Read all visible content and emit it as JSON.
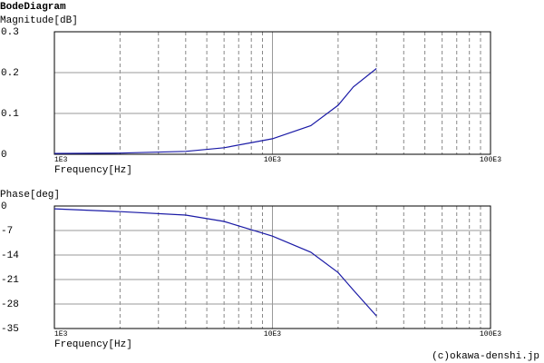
{
  "title": "BodeDiagram",
  "credit": "(c)okawa-denshi.jp",
  "chart_data": [
    {
      "type": "line",
      "ylabel": "Magnitude[dB]",
      "xlabel": "Frequency[Hz]",
      "xscale": "log",
      "grid": true,
      "x": [
        1000,
        2000,
        4000,
        6000,
        10000,
        15000,
        20000,
        23500,
        30000
      ],
      "series": [
        {
          "name": "Magnitude",
          "color": "#1a1aa6",
          "values": [
            0.002,
            0.003,
            0.007,
            0.016,
            0.038,
            0.07,
            0.12,
            0.165,
            0.21
          ]
        }
      ],
      "xlim": [
        1000,
        100000
      ],
      "xticks": [
        {
          "value": 1000,
          "label": "1E3"
        },
        {
          "value": 10000,
          "label": "10E3"
        },
        {
          "value": 100000,
          "label": "100E3"
        }
      ],
      "ylim": [
        0,
        0.3
      ],
      "yticks": [
        0,
        0.1,
        0.2,
        0.3
      ]
    },
    {
      "type": "line",
      "ylabel": "Phase[deg]",
      "xlabel": "Frequency[Hz]",
      "xscale": "log",
      "grid": true,
      "x": [
        1000,
        2000,
        4000,
        6000,
        10000,
        15000,
        20000,
        23500,
        30000
      ],
      "series": [
        {
          "name": "Phase",
          "color": "#1a1aa6",
          "values": [
            -0.8,
            -1.6,
            -2.6,
            -4.4,
            -8.6,
            -13.2,
            -19,
            -24,
            -31.4
          ]
        }
      ],
      "xlim": [
        1000,
        100000
      ],
      "xticks": [
        {
          "value": 1000,
          "label": "1E3"
        },
        {
          "value": 10000,
          "label": "10E3"
        },
        {
          "value": 100000,
          "label": "100E3"
        }
      ],
      "ylim": [
        -35,
        0
      ],
      "yticks": [
        0,
        -7,
        -14,
        -21,
        -28,
        -35
      ]
    }
  ]
}
